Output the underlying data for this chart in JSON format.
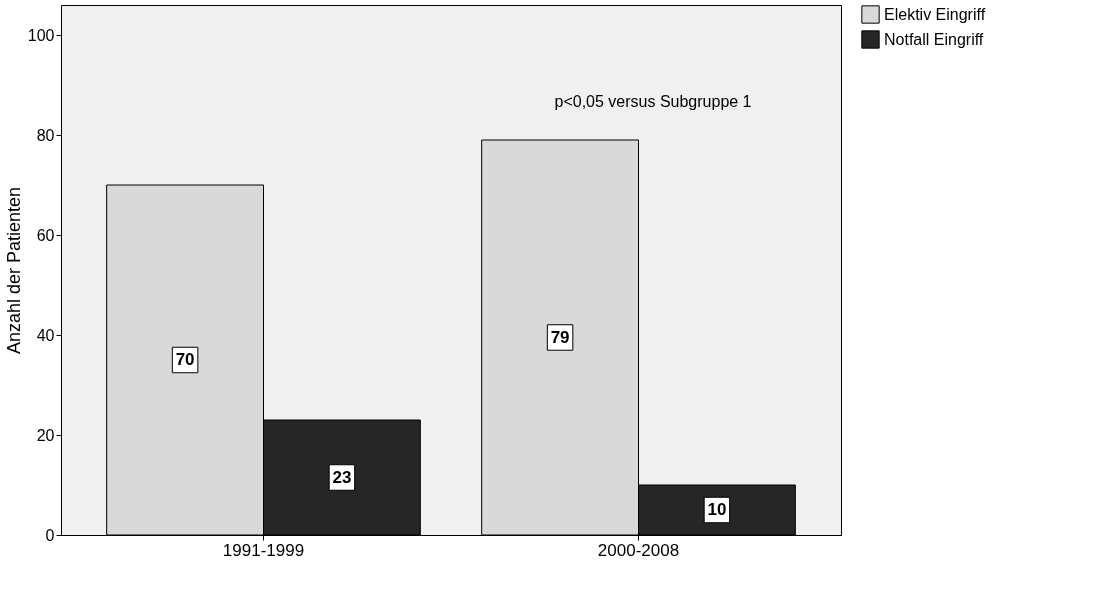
{
  "chart_data": {
    "type": "bar",
    "ylabel": "Anzahl der Patienten",
    "categories": [
      "1991-1999",
      "2000-2008"
    ],
    "series": [
      {
        "name": "Elektiv Eingriff",
        "color": "#d9d9d9",
        "values": [
          70,
          79
        ]
      },
      {
        "name": "Notfall Eingriff",
        "color": "#262626",
        "values": [
          23,
          10
        ]
      }
    ],
    "ylim": [
      0,
      106
    ],
    "yticks": [
      0,
      20,
      40,
      60,
      80,
      100
    ],
    "grid": false,
    "legend": "top right",
    "data_labels": true,
    "annotations": [
      "p<0,05 versus Subgruppe 1"
    ]
  }
}
